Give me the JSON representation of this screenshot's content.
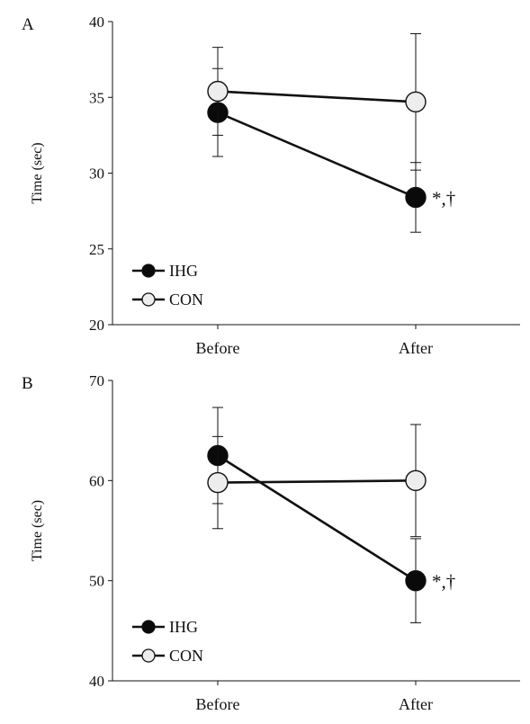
{
  "colors": {
    "ihg_fill": "#0a0a0a",
    "con_fill": "#ededed",
    "axis": "#111111",
    "line": "#111111"
  },
  "chart_data": [
    {
      "type": "line",
      "panel_label": "A",
      "ylabel": "Time (sec)",
      "categories": [
        "Before",
        "After"
      ],
      "ylim": [
        20,
        40
      ],
      "yticks": [
        20,
        25,
        30,
        35,
        40
      ],
      "legend_placement": "bottom-left",
      "series": [
        {
          "name": "IHG",
          "values": [
            34.0,
            28.4
          ],
          "error": [
            2.9,
            2.3
          ]
        },
        {
          "name": "CON",
          "values": [
            35.4,
            34.7
          ],
          "error": [
            2.9,
            4.5
          ]
        }
      ],
      "annotation": "*,†"
    },
    {
      "type": "line",
      "panel_label": "B",
      "ylabel": "Time (sec)",
      "categories": [
        "Before",
        "After"
      ],
      "ylim": [
        40,
        70
      ],
      "yticks": [
        40,
        50,
        60,
        70
      ],
      "legend_placement": "bottom-left",
      "series": [
        {
          "name": "IHG",
          "values": [
            62.5,
            50.0
          ],
          "error": [
            4.8,
            4.2
          ]
        },
        {
          "name": "CON",
          "values": [
            59.8,
            60.0
          ],
          "error": [
            4.6,
            5.6
          ]
        }
      ],
      "annotation": "*,†"
    }
  ]
}
